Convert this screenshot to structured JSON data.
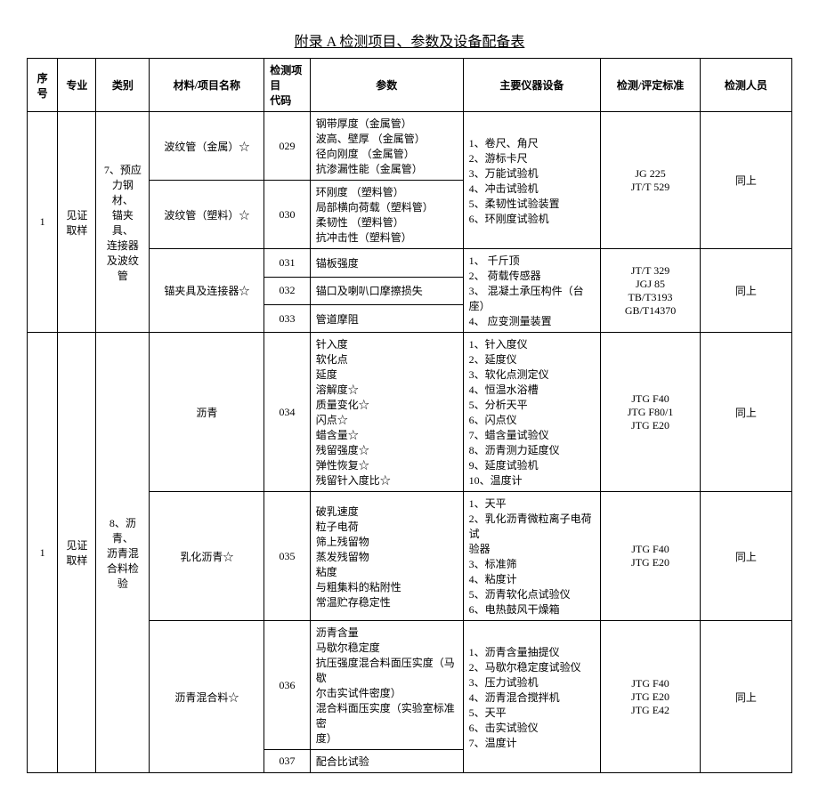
{
  "title": "附录 A   检测项目、参数及设备配备表",
  "headers": {
    "col1": "序号",
    "col2": "专业",
    "col3": "类别",
    "col4": "材料/项目名称",
    "col5": "检测项目\n代码",
    "col6": "参数",
    "col7": "主要仪器设备",
    "col8": "检测/评定标准",
    "col9": "检测人员"
  },
  "rows": [
    {
      "seq": "1",
      "prof": "见证\n取样",
      "cat": "7、预应\n力钢材、\n锚夹具、\n连接器\n及波纹\n管",
      "sub": [
        {
          "material": "波纹管（金属）☆",
          "codes": [
            {
              "code": "029",
              "params": "钢带厚度（金属管）\n波高、壁厚 （金属管）\n径向刚度 （金属管）\n抗渗漏性能（金属管）"
            }
          ],
          "equipGroup": "1、卷尺、角尺\n2、游标卡尺\n3、万能试验机\n4、冲击试验机\n5、柔韧性试验装置\n6、环刚度试验机",
          "stdGroup": "JG 225\nJT/T 529",
          "persGroup": "同上"
        },
        {
          "material": "波纹管（塑料）☆",
          "codes": [
            {
              "code": "030",
              "params": "环刚度 （塑料管）\n局部横向荷载（塑料管）\n柔韧性 （塑料管）\n抗冲击性（塑料管）"
            }
          ]
        },
        {
          "material": "锚夹具及连接器☆",
          "codes": [
            {
              "code": "031",
              "params": "锚板强度"
            },
            {
              "code": "032",
              "params": "锚口及喇叭口摩擦损失"
            },
            {
              "code": "033",
              "params": "管道摩阻"
            }
          ],
          "equipGroup": "1、 千斤顶\n2、 荷载传感器\n3、 混凝土承压构件（台座）\n4、 应变测量装置",
          "stdGroup": "JT/T  329\nJGJ  85\nTB/T3193\nGB/T14370",
          "persGroup": "同上"
        }
      ]
    },
    {
      "seq": "1",
      "prof": "见证\n取样",
      "cat": "8、沥青、\n沥青混\n合料检\n验",
      "sub": [
        {
          "material": "沥青",
          "codes": [
            {
              "code": "034",
              "params": "针入度\n软化点\n延度\n溶解度☆\n质量变化☆\n闪点☆\n蜡含量☆\n残留强度☆\n弹性恢复☆\n残留针入度比☆"
            }
          ],
          "equipGroup": "1、针入度仪\n2、延度仪\n3、软化点测定仪\n4、恒温水浴槽\n5、分析天平\n6、闪点仪\n7、蜡含量试验仪\n8、沥青测力延度仪\n9、延度试验机\n10、温度计",
          "stdGroup": "JTG F40\nJTG F80/1\nJTG E20",
          "persGroup": "同上"
        },
        {
          "material": "乳化沥青☆",
          "codes": [
            {
              "code": "035",
              "params": "破乳速度\n粒子电荷\n筛上残留物\n蒸发残留物\n粘度\n与粗集料的粘附性\n常温贮存稳定性"
            }
          ],
          "equipGroup": "1、天平\n2、乳化沥青微粒离子电荷试\n验器\n3、标准筛\n4、粘度计\n5、沥青软化点试验仪\n6、电热鼓风干燥箱",
          "stdGroup": "JTG F40\nJTG E20",
          "persGroup": "同上"
        },
        {
          "material": "沥青混合料☆",
          "codes": [
            {
              "code": "036",
              "params": "沥青含量\n马歇尔稳定度\n抗压强度混合料面压实度（马歇\n尔击实试件密度）\n混合料面压实度（实验室标准密\n度）"
            },
            {
              "code": "037",
              "params": "配合比试验"
            }
          ],
          "equipGroup": "1、沥青含量抽提仪\n2、马歇尔稳定度试验仪\n3、压力试验机\n4、沥青混合搅拌机\n5、天平\n6、击实试验仪\n7、温度计",
          "stdGroup": "JTG F40\nJTG E20\nJTG E42",
          "persGroup": "同上"
        }
      ]
    }
  ]
}
